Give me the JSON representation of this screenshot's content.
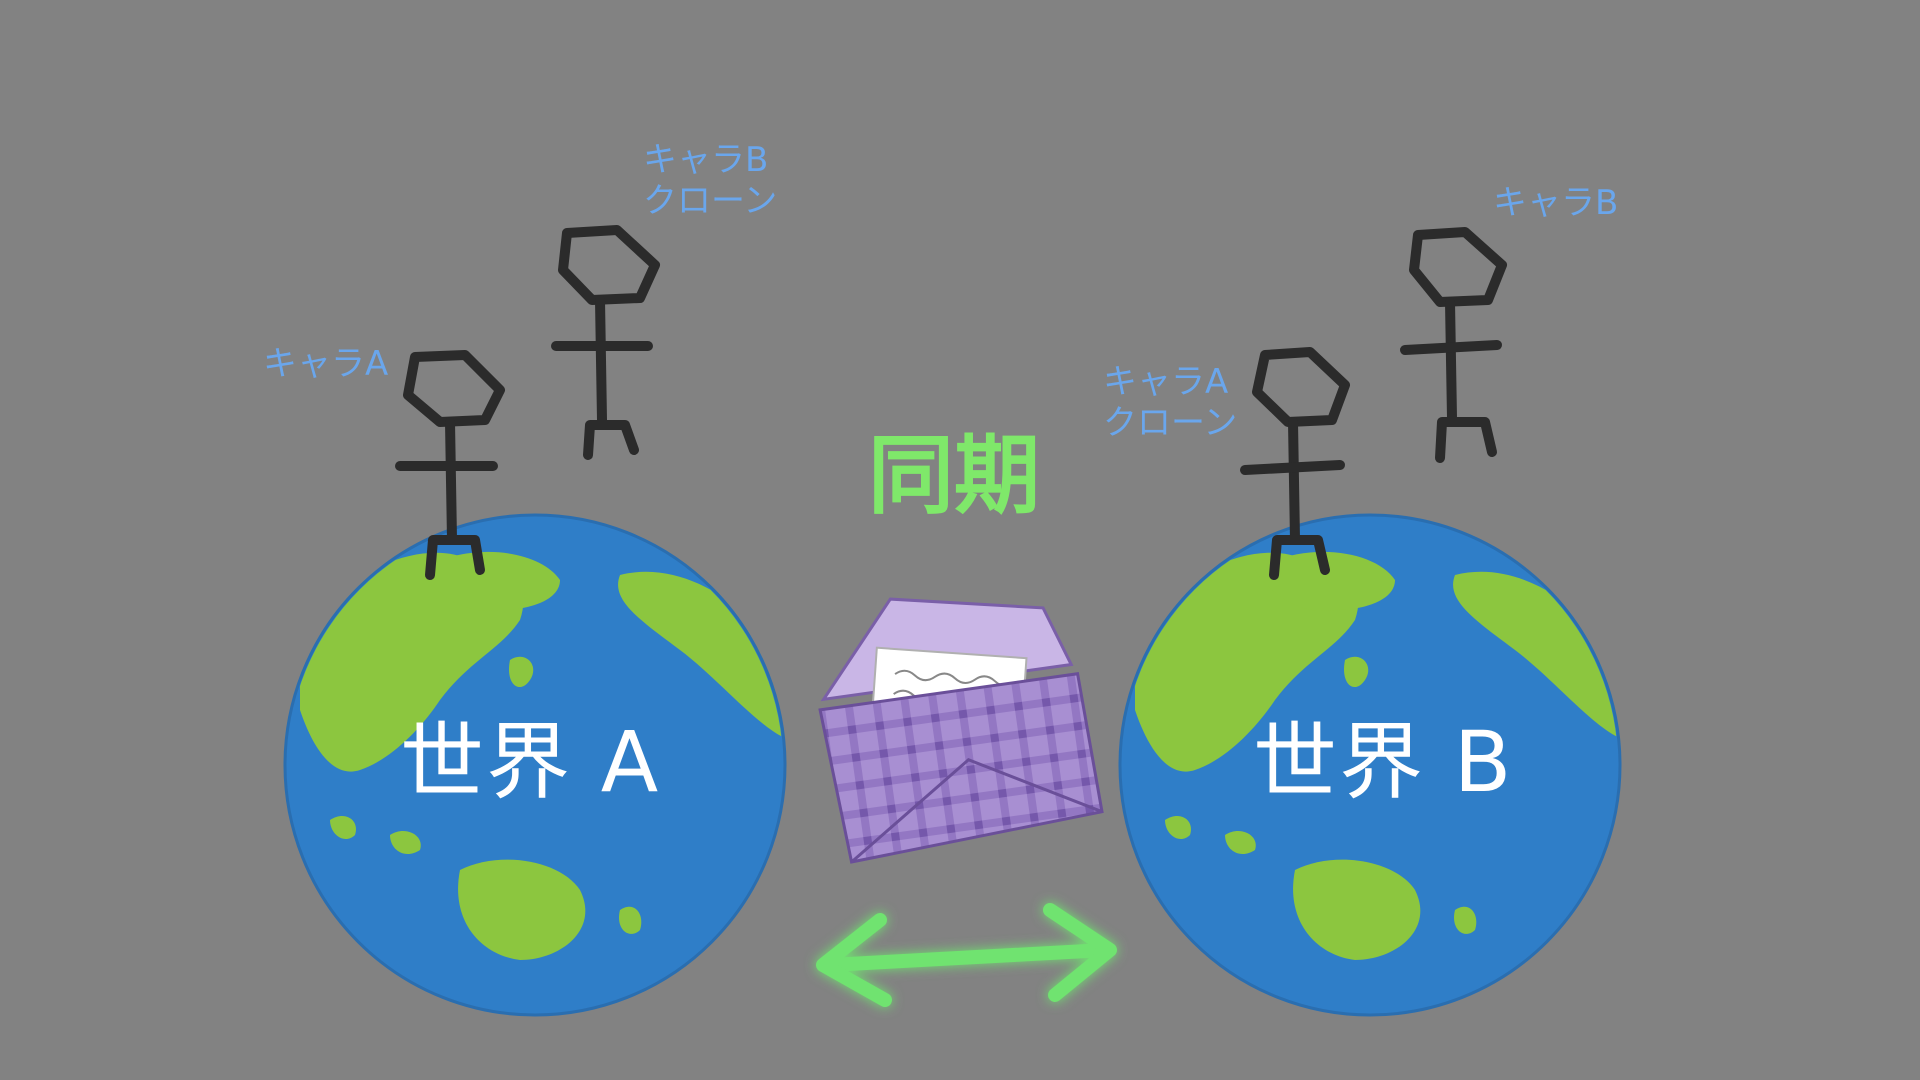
{
  "colors": {
    "background": "#828282",
    "ocean": "#2f7ec8",
    "land": "#8cc63f",
    "figure": "#2b2b2b",
    "character_label": "#6aa6ec",
    "sync_label": "#7fe86a",
    "sync_arrow": "#6fe36f",
    "envelope": "#9b7fc4"
  },
  "worlds": [
    {
      "label": "世界 A"
    },
    {
      "label": "世界 B"
    }
  ],
  "characters": {
    "world_a_main": "キャラA",
    "world_a_clone": "キャラB\nクローン",
    "world_b_main": "キャラB",
    "world_b_clone": "キャラA\nクローン"
  },
  "sync_label": "同期",
  "icons": [
    "earth-icon",
    "stick-figure-icon",
    "envelope-letter-icon",
    "double-arrow-icon"
  ]
}
